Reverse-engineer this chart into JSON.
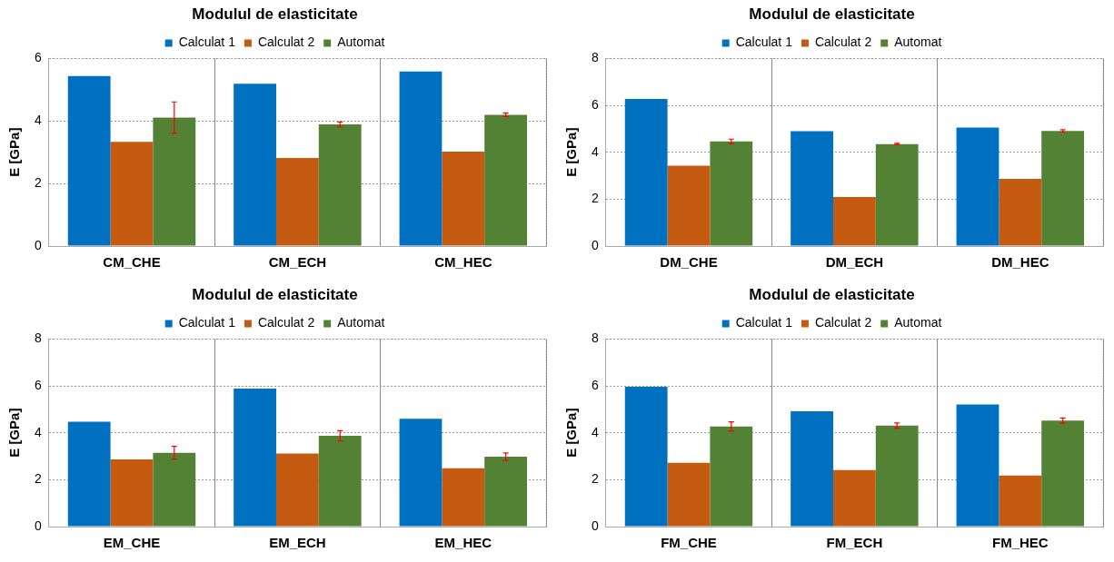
{
  "chart_data": [
    {
      "type": "bar",
      "title": "Modulul de elasticitate",
      "ylabel": "E [GPa]",
      "categories": [
        "CM_CHE",
        "CM_ECH",
        "CM_HEC"
      ],
      "series": [
        {
          "name": "Calculat 1",
          "color": "#0070c0",
          "values": [
            5.44,
            5.19,
            5.58
          ]
        },
        {
          "name": "Calculat 2",
          "color": "#c55a11",
          "values": [
            3.33,
            2.82,
            3.02
          ]
        },
        {
          "name": "Automat",
          "color": "#548235",
          "values": [
            4.11,
            3.89,
            4.2
          ],
          "errors": [
            0.5,
            0.08,
            0.06
          ]
        }
      ],
      "ylim": [
        0,
        6
      ],
      "yticks": [
        0,
        2,
        4,
        6
      ],
      "grid": true,
      "legend": "top"
    },
    {
      "type": "bar",
      "title": "Modulul de elasticitate",
      "ylabel": "E [GPa]",
      "categories": [
        "DM_CHE",
        "DM_ECH",
        "DM_HEC"
      ],
      "series": [
        {
          "name": "Calculat 1",
          "color": "#0070c0",
          "values": [
            6.27,
            4.9,
            5.05
          ]
        },
        {
          "name": "Calculat 2",
          "color": "#c55a11",
          "values": [
            3.43,
            2.09,
            2.87
          ]
        },
        {
          "name": "Automat",
          "color": "#548235",
          "values": [
            4.46,
            4.35,
            4.91
          ],
          "errors": [
            0.1,
            0.03,
            0.05
          ]
        }
      ],
      "ylim": [
        0,
        8
      ],
      "yticks": [
        0,
        2,
        4,
        6,
        8
      ],
      "grid": true,
      "legend": "top"
    },
    {
      "type": "bar",
      "title": "Modulul de elasticitate",
      "ylabel": "E [GPa]",
      "categories": [
        "EM_CHE",
        "EM_ECH",
        "EM_HEC"
      ],
      "series": [
        {
          "name": "Calculat 1",
          "color": "#0070c0",
          "values": [
            4.47,
            5.89,
            4.6
          ]
        },
        {
          "name": "Calculat 2",
          "color": "#c55a11",
          "values": [
            2.87,
            3.12,
            2.49
          ]
        },
        {
          "name": "Automat",
          "color": "#548235",
          "values": [
            3.15,
            3.87,
            2.98
          ],
          "errors": [
            0.27,
            0.22,
            0.16
          ]
        }
      ],
      "ylim": [
        0,
        8
      ],
      "yticks": [
        0,
        2,
        4,
        6,
        8
      ],
      "grid": true,
      "legend": "top"
    },
    {
      "type": "bar",
      "title": "Modulul de elasticitate",
      "ylabel": "E [GPa]",
      "categories": [
        "FM_CHE",
        "FM_ECH",
        "FM_HEC"
      ],
      "series": [
        {
          "name": "Calculat 1",
          "color": "#0070c0",
          "values": [
            5.96,
            4.92,
            5.21
          ]
        },
        {
          "name": "Calculat 2",
          "color": "#c55a11",
          "values": [
            2.72,
            2.41,
            2.18
          ]
        },
        {
          "name": "Automat",
          "color": "#548235",
          "values": [
            4.27,
            4.31,
            4.52
          ],
          "errors": [
            0.2,
            0.11,
            0.11
          ]
        }
      ],
      "ylim": [
        0,
        8
      ],
      "yticks": [
        0,
        2,
        4,
        6,
        8
      ],
      "grid": true,
      "legend": "top"
    }
  ]
}
